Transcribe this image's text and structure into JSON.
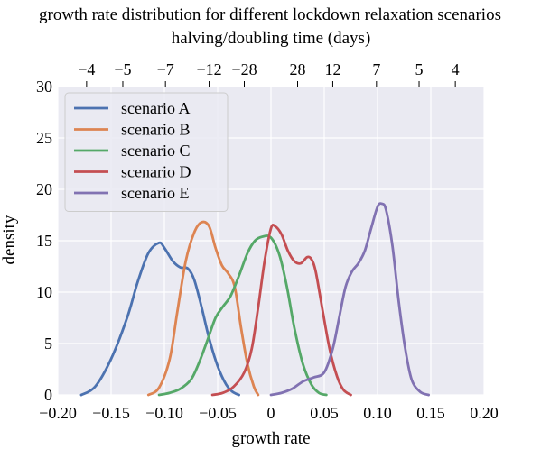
{
  "chart_data": {
    "type": "line",
    "title": "growth rate distribution for different lockdown relaxation scenarios",
    "xlabel": "growth rate",
    "ylabel": "density",
    "xlim": [
      -0.2,
      0.2
    ],
    "ylim": [
      0,
      30
    ],
    "x_ticks": [
      "−0.20",
      "−0.15",
      "−0.10",
      "−0.05",
      "0",
      "0.05",
      "0.10",
      "0.15",
      "0.20"
    ],
    "x_tick_values": [
      -0.2,
      -0.15,
      -0.1,
      -0.05,
      0,
      0.05,
      0.1,
      0.15,
      0.2
    ],
    "y_ticks": [
      "0",
      "5",
      "10",
      "15",
      "20",
      "25",
      "30"
    ],
    "y_tick_values": [
      0,
      5,
      10,
      15,
      20,
      25,
      30
    ],
    "top_axis": {
      "label": "halving/doubling time (days)",
      "ticks": [
        "−4",
        "−5",
        "−7",
        "−12",
        "−28",
        "28",
        "12",
        "7",
        "5",
        "4"
      ],
      "tick_growth_rates": [
        -0.173,
        -0.139,
        -0.099,
        -0.058,
        -0.025,
        0.025,
        0.058,
        0.099,
        0.139,
        0.173
      ]
    },
    "grid": true,
    "legend_position": "top-left",
    "series": [
      {
        "name": "scenario A",
        "color": "#4c72b0",
        "x": [
          -0.178,
          -0.165,
          -0.15,
          -0.135,
          -0.125,
          -0.115,
          -0.105,
          -0.1,
          -0.092,
          -0.085,
          -0.078,
          -0.072,
          -0.065,
          -0.058,
          -0.05,
          -0.042,
          -0.036,
          -0.03
        ],
        "y": [
          0,
          0.8,
          3.5,
          7.5,
          11,
          13.8,
          14.8,
          14.3,
          13,
          12.4,
          12.3,
          11.2,
          8.5,
          5.5,
          2.8,
          1,
          0.3,
          0
        ]
      },
      {
        "name": "scenario B",
        "color": "#dd8452",
        "x": [
          -0.115,
          -0.105,
          -0.095,
          -0.088,
          -0.08,
          -0.072,
          -0.065,
          -0.058,
          -0.052,
          -0.046,
          -0.04,
          -0.034,
          -0.028,
          -0.022,
          -0.016,
          -0.012
        ],
        "y": [
          0,
          0.7,
          3.5,
          8,
          13,
          15.8,
          16.8,
          16.4,
          14.3,
          12.6,
          11.8,
          10.5,
          6.5,
          3,
          0.8,
          0
        ]
      },
      {
        "name": "scenario C",
        "color": "#55a868",
        "x": [
          -0.105,
          -0.095,
          -0.085,
          -0.075,
          -0.068,
          -0.06,
          -0.052,
          -0.045,
          -0.038,
          -0.03,
          -0.022,
          -0.015,
          -0.008,
          0,
          0.008,
          0.015,
          0.022,
          0.03,
          0.038,
          0.045,
          0.052
        ],
        "y": [
          0,
          0.2,
          0.6,
          1.5,
          3,
          5.2,
          7.5,
          8.6,
          9.6,
          11.6,
          13.8,
          15,
          15.4,
          15.3,
          13.6,
          10.5,
          6.5,
          3,
          1,
          0.2,
          0
        ]
      },
      {
        "name": "scenario D",
        "color": "#c44e52",
        "x": [
          -0.055,
          -0.045,
          -0.035,
          -0.025,
          -0.018,
          -0.012,
          -0.006,
          0,
          0.004,
          0.01,
          0.016,
          0.022,
          0.028,
          0.034,
          0.038,
          0.042,
          0.048,
          0.055,
          0.062,
          0.068,
          0.075
        ],
        "y": [
          0,
          0.2,
          0.8,
          2.2,
          4.5,
          8.5,
          13,
          16.2,
          16.4,
          15.6,
          14,
          13,
          12.8,
          13.4,
          13.2,
          12,
          8.5,
          4.5,
          1.8,
          0.5,
          0
        ]
      },
      {
        "name": "scenario E",
        "color": "#8172b2",
        "x": [
          0,
          0.01,
          0.02,
          0.03,
          0.04,
          0.05,
          0.058,
          0.064,
          0.07,
          0.076,
          0.082,
          0.088,
          0.094,
          0.1,
          0.104,
          0.108,
          0.114,
          0.12,
          0.126,
          0.132,
          0.14,
          0.148
        ],
        "y": [
          0,
          0.2,
          0.6,
          1.3,
          1.7,
          2.2,
          4.5,
          7.5,
          10.5,
          12,
          12.8,
          14,
          16.2,
          18.3,
          18.6,
          18,
          14.5,
          9,
          4.5,
          1.5,
          0.3,
          0
        ]
      }
    ]
  }
}
